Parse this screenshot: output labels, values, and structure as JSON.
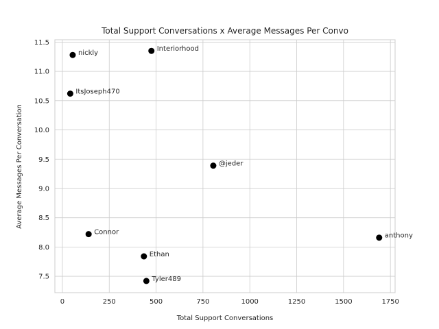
{
  "chart_data": {
    "type": "scatter",
    "title": "Total Support Conversations x Average Messages Per Convo",
    "xlabel": "Total Support Conversations",
    "ylabel": "Average Messages Per Conversation",
    "xlim": [
      -40,
      1775
    ],
    "ylim": [
      7.22,
      11.54
    ],
    "xticks": [
      0,
      250,
      500,
      750,
      1000,
      1250,
      1500,
      1750
    ],
    "yticks": [
      7.5,
      8.0,
      8.5,
      9.0,
      9.5,
      10.0,
      10.5,
      11.0,
      11.5
    ],
    "grid": true,
    "marker_color": "#000000",
    "points": [
      {
        "label": "nickly",
        "x": 55,
        "y": 11.28
      },
      {
        "label": "Interiorhood",
        "x": 475,
        "y": 11.35
      },
      {
        "label": "ItsJoseph470",
        "x": 42,
        "y": 10.62
      },
      {
        "label": "@jeder",
        "x": 805,
        "y": 9.39
      },
      {
        "label": "Connor",
        "x": 140,
        "y": 8.22
      },
      {
        "label": "anthony",
        "x": 1690,
        "y": 8.16
      },
      {
        "label": "Ethan",
        "x": 435,
        "y": 7.84
      },
      {
        "label": "Tyler489",
        "x": 448,
        "y": 7.42
      }
    ]
  }
}
